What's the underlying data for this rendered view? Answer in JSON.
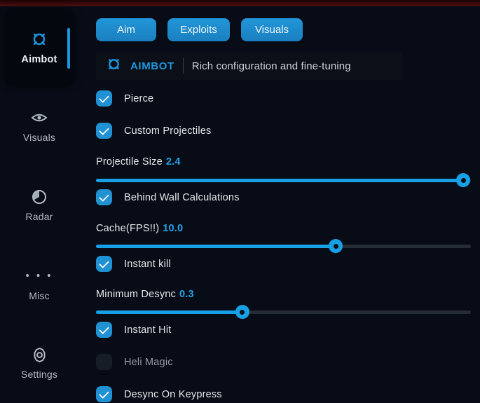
{
  "colors": {
    "accent_blue": "#1e96dd",
    "slider_blue": "#18a0e6",
    "background": "#080c16",
    "top_strip_red": "#521010",
    "panel_black": "#04070e"
  },
  "sidebar": {
    "items": [
      {
        "label": "Aimbot",
        "icon": "crosshair-icon",
        "active": true
      },
      {
        "label": "Visuals",
        "icon": "eye-icon",
        "active": false
      },
      {
        "label": "Radar",
        "icon": "radar-icon",
        "active": false
      },
      {
        "label": "Misc",
        "icon": "ellipsis-icon",
        "active": false
      },
      {
        "label": "Settings",
        "icon": "gear-icon",
        "active": false
      }
    ]
  },
  "tabs": [
    {
      "label": "Aim"
    },
    {
      "label": "Exploits"
    },
    {
      "label": "Visuals"
    }
  ],
  "header": {
    "title": "AIMBOT",
    "subtitle": "Rich configuration and fine-tuning",
    "icon": "crosshair-icon"
  },
  "controls": [
    {
      "type": "checkbox",
      "label": "Pierce",
      "checked": true
    },
    {
      "type": "checkbox",
      "label": "Custom Projectiles",
      "checked": true
    },
    {
      "type": "slider",
      "label": "Projectile Size",
      "value": "2.4",
      "percent": 98
    },
    {
      "type": "checkbox",
      "label": "Behind Wall Calculations",
      "checked": true
    },
    {
      "type": "slider",
      "label": "Cache(FPS!!)",
      "value": "10.0",
      "percent": 64
    },
    {
      "type": "checkbox",
      "label": "Instant kill",
      "checked": true
    },
    {
      "type": "slider",
      "label": "Minimum Desync",
      "value": "0.3",
      "percent": 39
    },
    {
      "type": "checkbox",
      "label": "Instant Hit",
      "checked": true
    },
    {
      "type": "checkbox",
      "label": "Heli Magic",
      "checked": false
    },
    {
      "type": "checkbox",
      "label": "Desync On Keypress",
      "checked": true
    }
  ]
}
